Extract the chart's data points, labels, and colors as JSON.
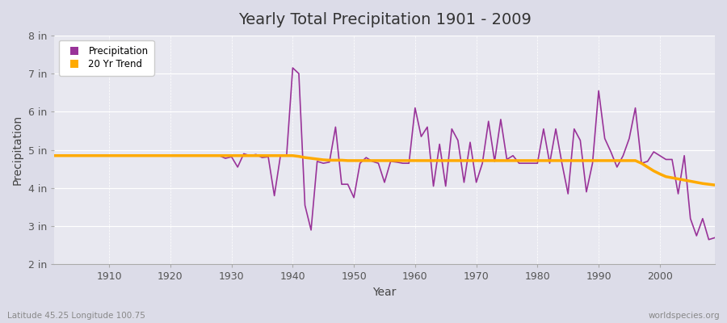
{
  "title": "Yearly Total Precipitation 1901 - 2009",
  "xlabel": "Year",
  "ylabel": "Precipitation",
  "x_label_bottom": "Latitude 45.25 Longitude 100.75",
  "x_label_right": "worldspecies.org",
  "bg_color": "#dcdce8",
  "plot_bg_color": "#e8e8f0",
  "line_color": "#993399",
  "trend_color": "#ffaa00",
  "ylim": [
    2,
    8
  ],
  "yticks": [
    2,
    3,
    4,
    5,
    6,
    7,
    8
  ],
  "ytick_labels": [
    "2 in",
    "3 in",
    "4 in",
    "5 in",
    "6 in",
    "7 in",
    "8 in"
  ],
  "xticks": [
    1910,
    1920,
    1930,
    1940,
    1950,
    1960,
    1970,
    1980,
    1990,
    2000
  ],
  "years": [
    1901,
    1902,
    1903,
    1904,
    1905,
    1906,
    1907,
    1908,
    1909,
    1910,
    1911,
    1912,
    1913,
    1914,
    1915,
    1916,
    1917,
    1918,
    1919,
    1920,
    1921,
    1922,
    1923,
    1924,
    1925,
    1926,
    1927,
    1928,
    1929,
    1930,
    1931,
    1932,
    1933,
    1934,
    1935,
    1936,
    1937,
    1938,
    1939,
    1940,
    1941,
    1942,
    1943,
    1944,
    1945,
    1946,
    1947,
    1948,
    1949,
    1950,
    1951,
    1952,
    1953,
    1954,
    1955,
    1956,
    1957,
    1958,
    1959,
    1960,
    1961,
    1962,
    1963,
    1964,
    1965,
    1966,
    1967,
    1968,
    1969,
    1970,
    1971,
    1972,
    1973,
    1974,
    1975,
    1976,
    1977,
    1978,
    1979,
    1980,
    1981,
    1982,
    1983,
    1984,
    1985,
    1986,
    1987,
    1988,
    1989,
    1990,
    1991,
    1992,
    1993,
    1994,
    1995,
    1996,
    1997,
    1998,
    1999,
    2000,
    2001,
    2002,
    2003,
    2004,
    2005,
    2006,
    2007,
    2008,
    2009
  ],
  "precip": [
    4.85,
    4.85,
    4.85,
    4.85,
    4.85,
    4.85,
    4.85,
    4.85,
    4.85,
    4.85,
    4.85,
    4.85,
    4.85,
    4.85,
    4.85,
    4.85,
    4.85,
    4.85,
    4.85,
    4.85,
    4.85,
    4.85,
    4.85,
    4.85,
    4.85,
    4.85,
    4.85,
    4.85,
    4.78,
    4.82,
    4.55,
    4.9,
    4.85,
    4.88,
    4.8,
    4.82,
    3.8,
    4.85,
    4.85,
    7.15,
    7.0,
    3.55,
    2.9,
    4.7,
    4.65,
    4.68,
    5.6,
    4.1,
    4.1,
    3.75,
    4.65,
    4.8,
    4.7,
    4.65,
    4.15,
    4.7,
    4.68,
    4.65,
    4.65,
    6.1,
    5.35,
    5.6,
    4.05,
    5.15,
    4.05,
    5.55,
    5.25,
    4.15,
    5.2,
    4.15,
    4.65,
    5.75,
    4.7,
    5.8,
    4.75,
    4.85,
    4.65,
    4.65,
    4.65,
    4.65,
    5.55,
    4.65,
    5.55,
    4.65,
    3.85,
    5.55,
    5.25,
    3.9,
    4.65,
    6.55,
    5.3,
    4.95,
    4.55,
    4.85,
    5.3,
    6.1,
    4.65,
    4.7,
    4.95,
    4.85,
    4.75,
    4.75,
    3.85,
    4.85,
    3.2,
    2.75,
    3.2,
    2.65,
    2.7
  ],
  "trend": [
    4.85,
    4.85,
    4.85,
    4.85,
    4.85,
    4.85,
    4.85,
    4.85,
    4.85,
    4.85,
    4.85,
    4.85,
    4.85,
    4.85,
    4.85,
    4.85,
    4.85,
    4.85,
    4.85,
    4.85,
    4.85,
    4.85,
    4.85,
    4.85,
    4.85,
    4.85,
    4.85,
    4.85,
    4.85,
    4.85,
    4.85,
    4.85,
    4.85,
    4.85,
    4.85,
    4.85,
    4.85,
    4.85,
    4.85,
    4.85,
    4.83,
    4.8,
    4.78,
    4.76,
    4.74,
    4.73,
    4.73,
    4.73,
    4.72,
    4.72,
    4.72,
    4.72,
    4.72,
    4.72,
    4.72,
    4.72,
    4.72,
    4.72,
    4.72,
    4.72,
    4.72,
    4.72,
    4.72,
    4.72,
    4.72,
    4.72,
    4.72,
    4.72,
    4.72,
    4.72,
    4.72,
    4.72,
    4.72,
    4.72,
    4.72,
    4.72,
    4.72,
    4.72,
    4.72,
    4.72,
    4.72,
    4.72,
    4.72,
    4.72,
    4.72,
    4.72,
    4.72,
    4.72,
    4.72,
    4.72,
    4.72,
    4.72,
    4.72,
    4.72,
    4.72,
    4.72,
    4.65,
    4.55,
    4.45,
    4.37,
    4.3,
    4.27,
    4.24,
    4.21,
    4.18,
    4.15,
    4.12,
    4.1,
    4.08
  ]
}
